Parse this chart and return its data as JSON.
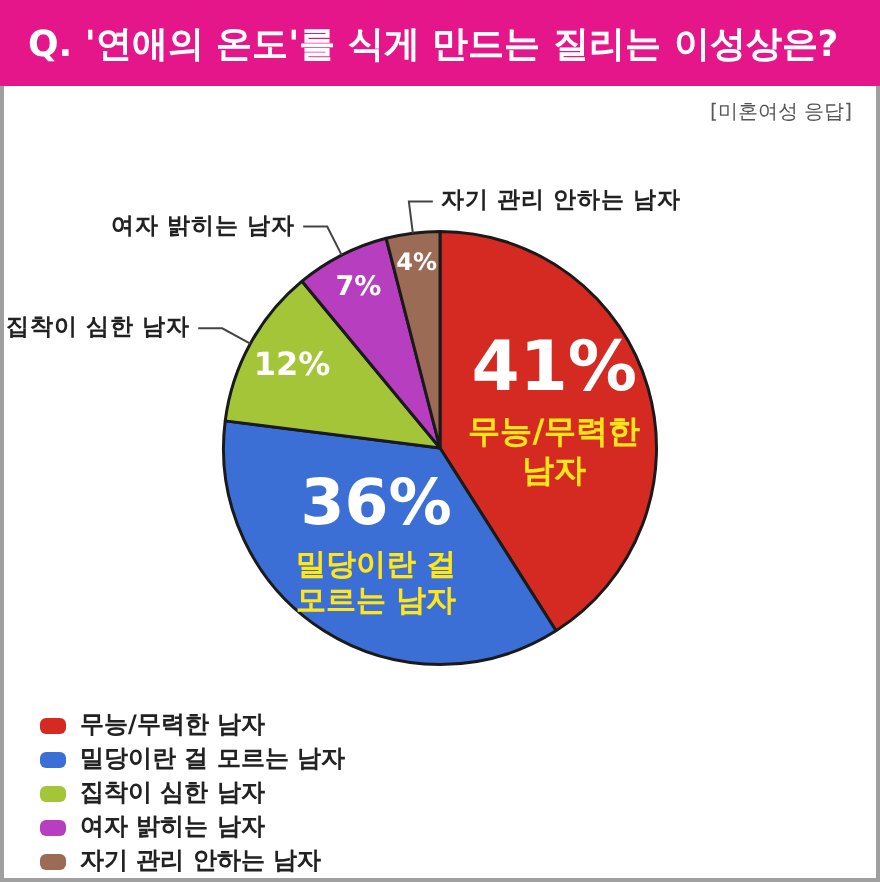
{
  "chart_data": {
    "type": "pie",
    "title": "Q. '연애의 온도'를 식게 만드는 질리는 이성상은?",
    "subtitle": "[미혼여성 응답]",
    "categories": [
      "무능/무력한 남자",
      "밀당이란 걸 모르는 남자",
      "집착이 심한 남자",
      "여자 밝히는 남자",
      "자기 관리 안하는 남자"
    ],
    "values": [
      41,
      36,
      12,
      7,
      4
    ],
    "colors": [
      "#d42a22",
      "#3b6fd6",
      "#a5c539",
      "#b73fbf",
      "#9c6b55"
    ],
    "value_labels": [
      "41%",
      "36%",
      "12%",
      "7%",
      "4%"
    ],
    "legend": "bottom left"
  }
}
